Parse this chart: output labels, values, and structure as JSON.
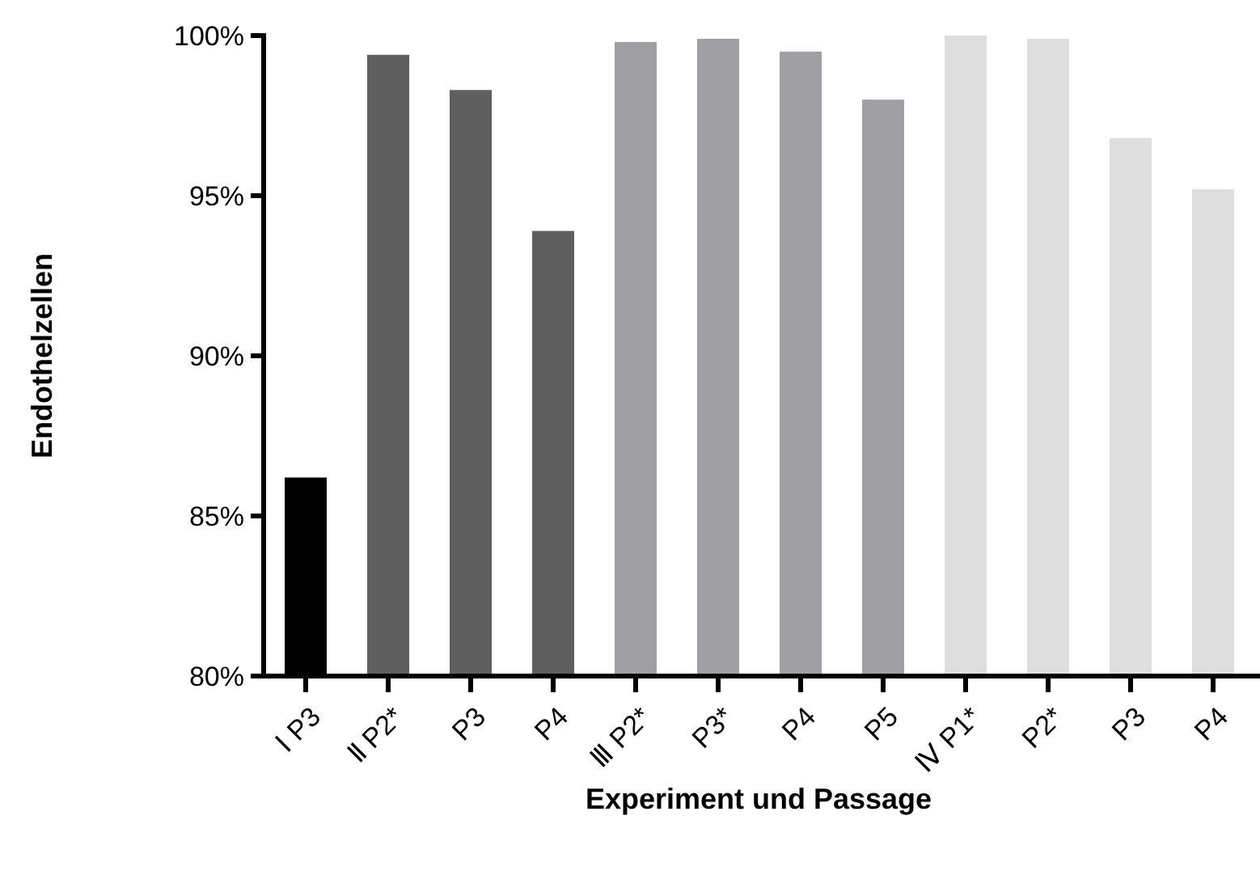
{
  "chart_data": {
    "type": "bar",
    "xlabel": "Experiment und Passage",
    "ylabel": "Endothelzellen",
    "categories": [
      "Ⅰ P3",
      "Ⅱ P2*",
      "P3",
      "P4",
      "Ⅲ P2*",
      "P3*",
      "P4",
      "P5",
      "Ⅳ P1*",
      "P2*",
      "P3",
      "P4"
    ],
    "values": [
      86.2,
      99.4,
      98.3,
      93.9,
      99.8,
      99.9,
      99.5,
      98.0,
      100,
      99.9,
      96.8,
      95.2
    ],
    "colors": [
      "#000000",
      "#5f5f5f",
      "#5f5f5f",
      "#5f5f5f",
      "#a0a0a4",
      "#a0a0a4",
      "#a0a0a4",
      "#a0a0a4",
      "#dedede",
      "#dedede",
      "#dedede",
      "#dedede"
    ],
    "ylim": [
      80,
      100
    ],
    "yticks": [
      {
        "value": 80,
        "label": "80%"
      },
      {
        "value": 85,
        "label": "85%"
      },
      {
        "value": 90,
        "label": "90%"
      },
      {
        "value": 95,
        "label": "95%"
      },
      {
        "value": 100,
        "label": "100%"
      }
    ],
    "grid": false
  }
}
